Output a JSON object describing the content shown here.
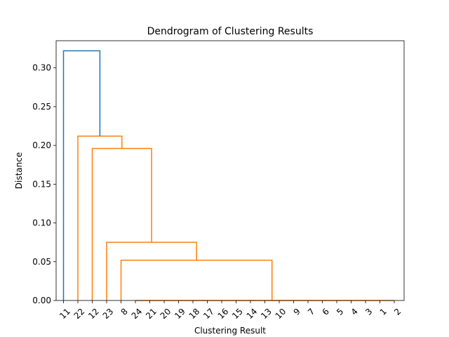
{
  "chart_data": {
    "type": "dendrogram",
    "title": "Dendrogram of Clustering Results",
    "xlabel": "Clustering Result",
    "ylabel": "Distance",
    "ylim": [
      0,
      0.335
    ],
    "yticks": [
      0.0,
      0.05,
      0.1,
      0.15,
      0.2,
      0.25,
      0.3
    ],
    "ytick_labels": [
      "0.00",
      "0.05",
      "0.10",
      "0.15",
      "0.20",
      "0.25",
      "0.30"
    ],
    "leaf_order": [
      "11",
      "22",
      "12",
      "23",
      "8",
      "24",
      "21",
      "20",
      "19",
      "18",
      "17",
      "16",
      "15",
      "14",
      "13",
      "10",
      "9",
      "7",
      "6",
      "5",
      "4",
      "3",
      "1",
      "2"
    ],
    "colors": {
      "above_threshold": "#1f77b4",
      "cluster": "#ff7f0e"
    },
    "links": [
      {
        "left": "24",
        "right": "21",
        "distance": 0.0,
        "color": "cluster"
      },
      {
        "left": "21",
        "right": "20",
        "distance": 0.0,
        "color": "cluster"
      },
      {
        "left": "20",
        "right": "19",
        "distance": 0.0,
        "color": "cluster"
      },
      {
        "left": "19",
        "right": "18",
        "distance": 0.0,
        "color": "cluster"
      },
      {
        "left": "18",
        "right": "17",
        "distance": 0.0,
        "color": "cluster"
      },
      {
        "left": "17",
        "right": "16",
        "distance": 0.0,
        "color": "cluster"
      },
      {
        "left": "16",
        "right": "15",
        "distance": 0.0,
        "color": "cluster"
      },
      {
        "left": "15",
        "right": "14",
        "distance": 0.0,
        "color": "cluster"
      },
      {
        "left": "14",
        "right": "13",
        "distance": 0.0,
        "color": "cluster"
      },
      {
        "left": "13",
        "right": "10",
        "distance": 0.0,
        "color": "cluster"
      },
      {
        "left": "10",
        "right": "9",
        "distance": 0.0,
        "color": "cluster"
      },
      {
        "left": "9",
        "right": "7",
        "distance": 0.0,
        "color": "cluster"
      },
      {
        "left": "7",
        "right": "6",
        "distance": 0.0,
        "color": "cluster"
      },
      {
        "left": "6",
        "right": "5",
        "distance": 0.0,
        "color": "cluster"
      },
      {
        "left": "5",
        "right": "4",
        "distance": 0.0,
        "color": "cluster"
      },
      {
        "left": "4",
        "right": "3",
        "distance": 0.0,
        "color": "cluster"
      },
      {
        "left": "3",
        "right": "1",
        "distance": 0.0,
        "color": "cluster"
      },
      {
        "left": "1",
        "right": "2",
        "distance": 0.0,
        "color": "cluster"
      },
      {
        "left": "8",
        "right": "24..2",
        "distance": 0.052,
        "color": "cluster"
      },
      {
        "left": "23",
        "right": "8..2",
        "distance": 0.075,
        "color": "cluster"
      },
      {
        "left": "12",
        "right": "23..2",
        "distance": 0.196,
        "color": "cluster"
      },
      {
        "left": "22",
        "right": "12..2",
        "distance": 0.212,
        "color": "cluster"
      },
      {
        "left": "11",
        "right": "22..2",
        "distance": 0.322,
        "color": "above_threshold"
      }
    ],
    "segments": [
      {
        "xa": 0,
        "xb": 1,
        "ya": 0.0,
        "yb": 0.0,
        "top": 0.0,
        "color": "cluster",
        "name": "link-24-21"
      },
      {
        "xa": 0,
        "xb": 1,
        "ya": 0.0,
        "yb": 0.0,
        "top": 0.0,
        "color": "cluster",
        "name": "link-21-20"
      },
      {
        "xa": 0,
        "xb": 1,
        "ya": 0.0,
        "yb": 0.0,
        "top": 0.0,
        "color": "cluster",
        "name": "link-20-19"
      },
      {
        "xa": 0,
        "xb": 1,
        "ya": 0.0,
        "yb": 0.0,
        "top": 0.0,
        "color": "cluster",
        "name": "link-19-18"
      },
      {
        "xa": 0,
        "xb": 1,
        "ya": 0.0,
        "yb": 0.0,
        "top": 0.0,
        "color": "cluster",
        "name": "link-18-17"
      },
      {
        "xa": 0,
        "xb": 1,
        "ya": 0.0,
        "yb": 0.0,
        "top": 0.0,
        "color": "cluster",
        "name": "link-17-16"
      },
      {
        "xa": 0,
        "xb": 1,
        "ya": 0.0,
        "yb": 0.0,
        "top": 0.0,
        "color": "cluster",
        "name": "link-16-15"
      },
      {
        "xa": 0,
        "xb": 1,
        "ya": 0.0,
        "yb": 0.0,
        "top": 0.0,
        "color": "cluster",
        "name": "link-15-14"
      },
      {
        "xa": 0,
        "xb": 1,
        "ya": 0.0,
        "yb": 0.0,
        "top": 0.0,
        "color": "cluster",
        "name": "link-14-13"
      },
      {
        "xa": 0,
        "xb": 1,
        "ya": 0.0,
        "yb": 0.0,
        "top": 0.0,
        "color": "cluster",
        "name": "link-13-10"
      },
      {
        "xa": 0,
        "xb": 1,
        "ya": 0.0,
        "yb": 0.0,
        "top": 0.0,
        "color": "cluster",
        "name": "link-10-9"
      },
      {
        "xa": 0,
        "xb": 1,
        "ya": 0.0,
        "yb": 0.0,
        "top": 0.0,
        "color": "cluster",
        "name": "link-9-7"
      },
      {
        "xa": 0,
        "xb": 1,
        "ya": 0.0,
        "yb": 0.0,
        "top": 0.0,
        "color": "cluster",
        "name": "link-7-6"
      },
      {
        "xa": 0,
        "xb": 1,
        "ya": 0.0,
        "yb": 0.0,
        "top": 0.0,
        "color": "cluster",
        "name": "link-6-5"
      },
      {
        "xa": 0,
        "xb": 1,
        "ya": 0.0,
        "yb": 0.0,
        "top": 0.0,
        "color": "cluster",
        "name": "link-5-4"
      },
      {
        "xa": 0,
        "xb": 1,
        "ya": 0.0,
        "yb": 0.0,
        "top": 0.0,
        "color": "cluster",
        "name": "link-4-3"
      },
      {
        "xa": 0,
        "xb": 1,
        "ya": 0.0,
        "yb": 0.0,
        "top": 0.0,
        "color": "cluster",
        "name": "link-3-1"
      },
      {
        "xa": 0,
        "xb": 1,
        "ya": 0.0,
        "yb": 0.0,
        "top": 0.0,
        "color": "cluster",
        "name": "link-1-2"
      },
      {
        "xa": 4,
        "xb": 14.5,
        "ya": 0.0,
        "yb": 0.0,
        "top": 0.052,
        "color": "cluster",
        "name": "link-8-rest"
      },
      {
        "xa": 3,
        "xb": 9.25,
        "ya": 0.0,
        "yb": 0.052,
        "top": 0.075,
        "color": "cluster",
        "name": "link-23-8"
      },
      {
        "xa": 2,
        "xb": 6.125,
        "ya": 0.0,
        "yb": 0.075,
        "top": 0.196,
        "color": "cluster",
        "name": "link-12-23"
      },
      {
        "xa": 1,
        "xb": 4.0625,
        "ya": 0.0,
        "yb": 0.196,
        "top": 0.212,
        "color": "cluster",
        "name": "link-22-12"
      },
      {
        "xa": 0,
        "xb": 2.53125,
        "ya": 0.0,
        "yb": 0.212,
        "top": 0.322,
        "color": "above_threshold",
        "name": "link-11-22"
      }
    ]
  }
}
